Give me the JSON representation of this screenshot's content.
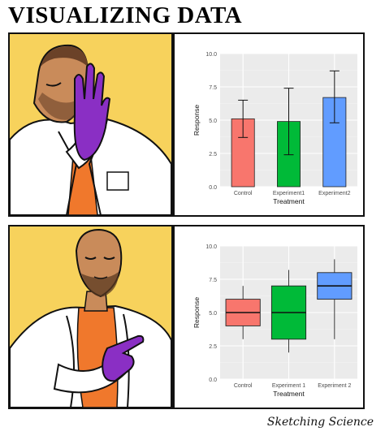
{
  "title": "VISUALIZING DATA",
  "credit": "Sketching Science",
  "colors": {
    "background_panel": "#f7d25c",
    "lab_coat": "#ffffff",
    "shirt": "#f0782c",
    "glove": "#8a2fc4",
    "skin": "#c98b5a",
    "series": [
      "#f8766d",
      "#00ba38",
      "#619cff"
    ]
  },
  "chart_data": [
    {
      "type": "bar",
      "description_panel": "top",
      "categories": [
        "Control",
        "Experiment1",
        "Experiment2"
      ],
      "values": [
        5.1,
        4.9,
        6.7
      ],
      "error_low": [
        3.7,
        2.4,
        4.8
      ],
      "error_high": [
        6.5,
        7.4,
        8.7
      ],
      "xlabel": "Treatment",
      "ylabel": "Response",
      "ylim": [
        0,
        10
      ],
      "yticks": [
        "0.0",
        "2.5",
        "5.0",
        "7.5",
        "10.0"
      ],
      "grid": true
    },
    {
      "type": "box",
      "description_panel": "bottom",
      "categories": [
        "Control",
        "Experiment 1",
        "Experiment 2"
      ],
      "boxes": [
        {
          "min": 3.0,
          "q1": 4.0,
          "median": 5.0,
          "q3": 6.0,
          "max": 7.0
        },
        {
          "min": 2.0,
          "q1": 3.0,
          "median": 5.0,
          "q3": 7.0,
          "max": 8.2
        },
        {
          "min": 3.0,
          "q1": 6.0,
          "median": 7.0,
          "q3": 8.0,
          "max": 9.0
        }
      ],
      "xlabel": "Treatment",
      "ylabel": "Response",
      "ylim": [
        0,
        10
      ],
      "yticks": [
        "0.0",
        "2.5",
        "5.0",
        "7.5",
        "10.0"
      ],
      "grid": true
    }
  ]
}
